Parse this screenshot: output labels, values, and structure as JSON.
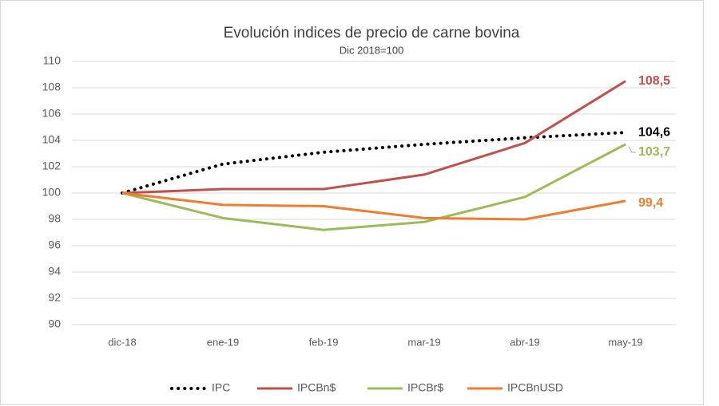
{
  "chart_data": {
    "type": "line",
    "title": "Evolución indices de precio de carne bovina",
    "subtitle": "Dic 2018=100",
    "categories": [
      "dic-18",
      "ene-19",
      "feb-19",
      "mar-19",
      "abr-19",
      "may-19"
    ],
    "series": [
      {
        "name": "IPC",
        "color": "#000000",
        "line_style": "dotted",
        "values": [
          100,
          102.2,
          103.1,
          103.7,
          104.2,
          104.6
        ],
        "value_labels": [
          null,
          null,
          null,
          null,
          null,
          "104,6"
        ]
      },
      {
        "name": "IPCBn$",
        "color": "#c0504d",
        "line_style": "solid",
        "values": [
          100,
          100.3,
          100.3,
          101.4,
          103.8,
          108.5
        ],
        "value_labels": [
          null,
          null,
          null,
          null,
          null,
          "108,5"
        ]
      },
      {
        "name": "IPCBr$",
        "color": "#9bbb59",
        "line_style": "solid",
        "values": [
          100,
          98.1,
          97.2,
          97.8,
          99.7,
          103.7
        ],
        "value_labels": [
          null,
          null,
          null,
          null,
          null,
          "103,7"
        ]
      },
      {
        "name": "IPCBnUSD",
        "color": "#ed7d31",
        "line_style": "solid",
        "values": [
          100,
          99.1,
          99.0,
          98.1,
          98.0,
          99.4
        ],
        "value_labels": [
          null,
          null,
          null,
          null,
          null,
          "99,4"
        ]
      }
    ],
    "ylim": [
      90,
      110
    ],
    "yticks": [
      90,
      92,
      94,
      96,
      98,
      100,
      102,
      104,
      106,
      108,
      110
    ],
    "grid": true,
    "legend": "bottom"
  }
}
